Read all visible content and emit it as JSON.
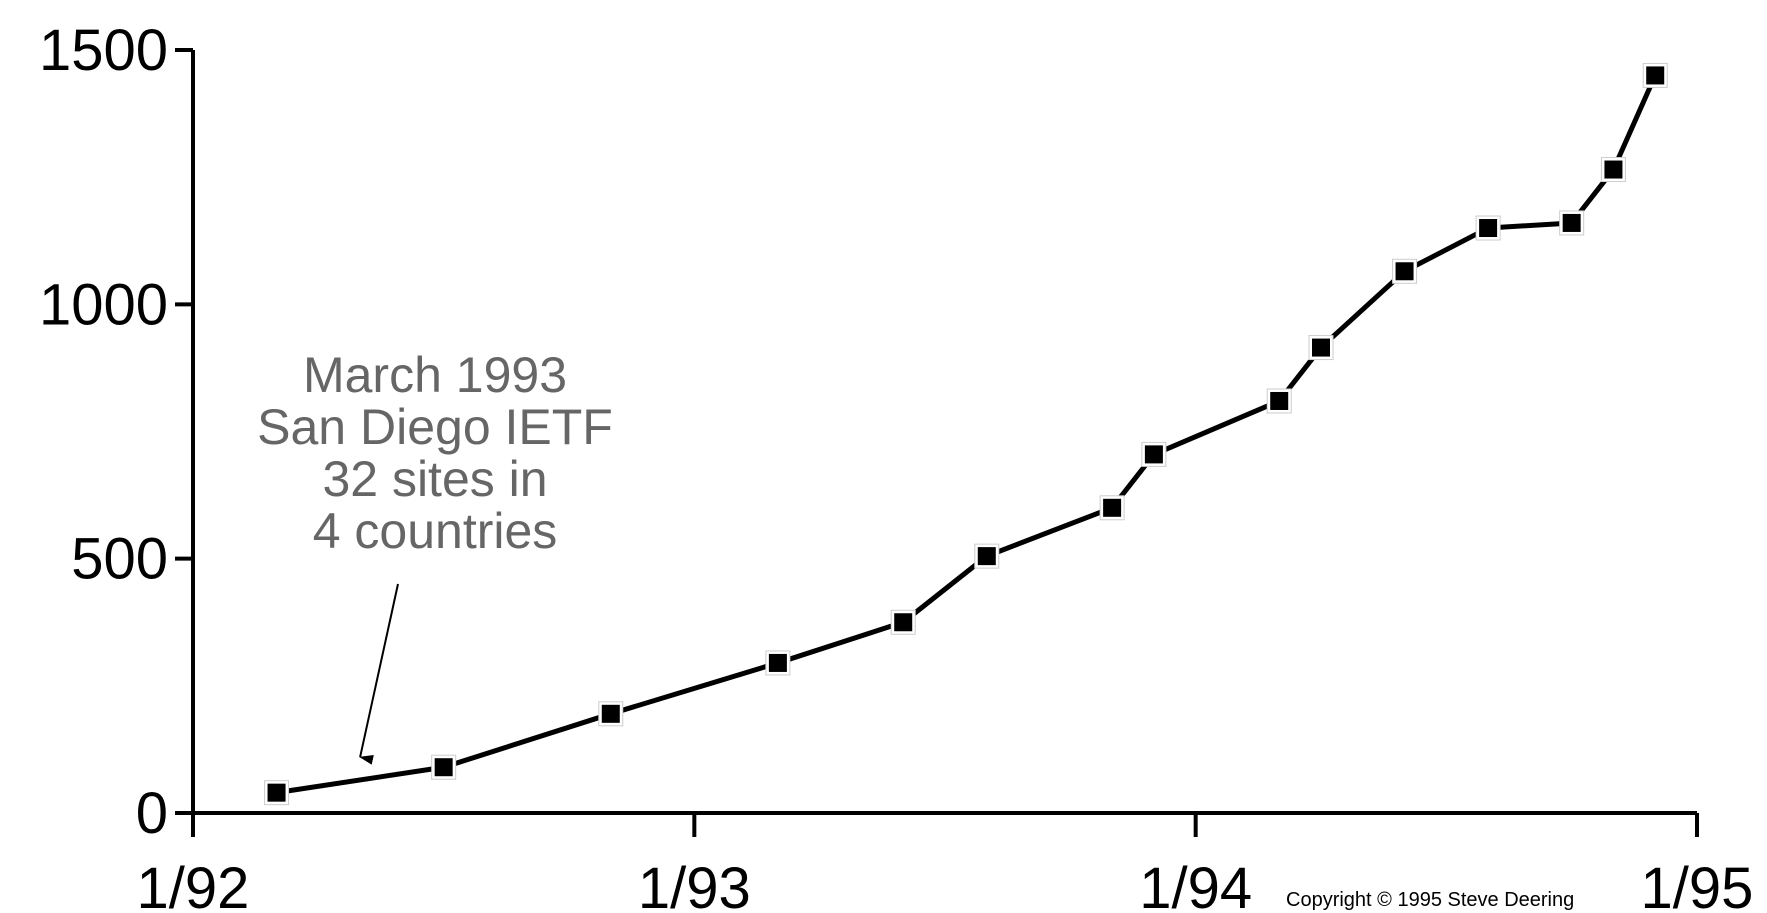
{
  "chart_data": {
    "type": "line",
    "x_ticks": [
      "1/92",
      "1/93",
      "1/94",
      "1/95"
    ],
    "y_ticks": [
      "0",
      "500",
      "1000",
      "1500"
    ],
    "ylim": [
      0,
      1500
    ],
    "xlim": [
      "1992-01",
      "1995-01"
    ],
    "grid": false,
    "series": [
      {
        "points": [
          {
            "x": "1992-03",
            "y": 40
          },
          {
            "x": "1992-07",
            "y": 90
          },
          {
            "x": "1992-11",
            "y": 195
          },
          {
            "x": "1993-03",
            "y": 295
          },
          {
            "x": "1993-06",
            "y": 375
          },
          {
            "x": "1993-08",
            "y": 505
          },
          {
            "x": "1993-11",
            "y": 600
          },
          {
            "x": "1993-12",
            "y": 705
          },
          {
            "x": "1994-03",
            "y": 810
          },
          {
            "x": "1994-04",
            "y": 915
          },
          {
            "x": "1994-06",
            "y": 1065
          },
          {
            "x": "1994-08",
            "y": 1150
          },
          {
            "x": "1994-10",
            "y": 1160
          },
          {
            "x": "1994-11",
            "y": 1265
          },
          {
            "x": "1994-12",
            "y": 1450
          }
        ]
      }
    ],
    "annotation": {
      "lines": [
        "March 1993",
        "San Diego IETF",
        "32 sites in",
        "4 countries"
      ],
      "points_to": {
        "x": "1992-05",
        "y": 110
      },
      "color": "#666666"
    },
    "copyright": "Copyright © 1995 Steve Deering"
  }
}
